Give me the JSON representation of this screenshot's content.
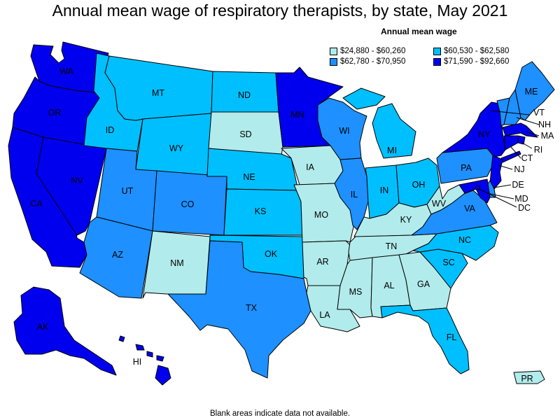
{
  "title": "Annual mean wage of respiratory therapists, by state, May 2021",
  "legend": {
    "title": "Annual mean wage",
    "items": [
      {
        "label": "$24,880 - $60,260",
        "color": "#b2ebeb"
      },
      {
        "label": "$60,530 - $62,580",
        "color": "#00bfff"
      },
      {
        "label": "$62,780 - $70,950",
        "color": "#1e90ff"
      },
      {
        "label": "$71,590 - $92,660",
        "color": "#0000ee"
      }
    ]
  },
  "footnote": "Blank areas indicate data not available.",
  "states": [
    {
      "abbr": "WA",
      "bin": 3
    },
    {
      "abbr": "OR",
      "bin": 3
    },
    {
      "abbr": "CA",
      "bin": 3
    },
    {
      "abbr": "NV",
      "bin": 3
    },
    {
      "abbr": "ID",
      "bin": 1
    },
    {
      "abbr": "MT",
      "bin": 1
    },
    {
      "abbr": "WY",
      "bin": 1
    },
    {
      "abbr": "UT",
      "bin": 2
    },
    {
      "abbr": "CO",
      "bin": 2
    },
    {
      "abbr": "AZ",
      "bin": 2
    },
    {
      "abbr": "NM",
      "bin": 0
    },
    {
      "abbr": "ND",
      "bin": 1
    },
    {
      "abbr": "SD",
      "bin": 0
    },
    {
      "abbr": "NE",
      "bin": 1
    },
    {
      "abbr": "KS",
      "bin": 1
    },
    {
      "abbr": "OK",
      "bin": 1
    },
    {
      "abbr": "TX",
      "bin": 2
    },
    {
      "abbr": "MN",
      "bin": 3
    },
    {
      "abbr": "IA",
      "bin": 0
    },
    {
      "abbr": "MO",
      "bin": 0
    },
    {
      "abbr": "AR",
      "bin": 0
    },
    {
      "abbr": "LA",
      "bin": 0
    },
    {
      "abbr": "WI",
      "bin": 2
    },
    {
      "abbr": "IL",
      "bin": 2
    },
    {
      "abbr": "MI",
      "bin": 1
    },
    {
      "abbr": "IN",
      "bin": 1
    },
    {
      "abbr": "OH",
      "bin": 1
    },
    {
      "abbr": "KY",
      "bin": 0
    },
    {
      "abbr": "TN",
      "bin": 0
    },
    {
      "abbr": "MS",
      "bin": 0
    },
    {
      "abbr": "AL",
      "bin": 0
    },
    {
      "abbr": "GA",
      "bin": 0
    },
    {
      "abbr": "FL",
      "bin": 1
    },
    {
      "abbr": "SC",
      "bin": 1
    },
    {
      "abbr": "NC",
      "bin": 1
    },
    {
      "abbr": "VA",
      "bin": 2
    },
    {
      "abbr": "WV",
      "bin": 0
    },
    {
      "abbr": "PA",
      "bin": 2
    },
    {
      "abbr": "NY",
      "bin": 3
    },
    {
      "abbr": "VT",
      "bin": 2
    },
    {
      "abbr": "NH",
      "bin": 2
    },
    {
      "abbr": "ME",
      "bin": 2
    },
    {
      "abbr": "MA",
      "bin": 3
    },
    {
      "abbr": "RI",
      "bin": 3
    },
    {
      "abbr": "CT",
      "bin": 3
    },
    {
      "abbr": "NJ",
      "bin": 3
    },
    {
      "abbr": "DE",
      "bin": 2
    },
    {
      "abbr": "MD",
      "bin": 3
    },
    {
      "abbr": "DC",
      "bin": 3
    },
    {
      "abbr": "AK",
      "bin": 3
    },
    {
      "abbr": "HI",
      "bin": 3
    },
    {
      "abbr": "PR",
      "bin": 0
    }
  ]
}
